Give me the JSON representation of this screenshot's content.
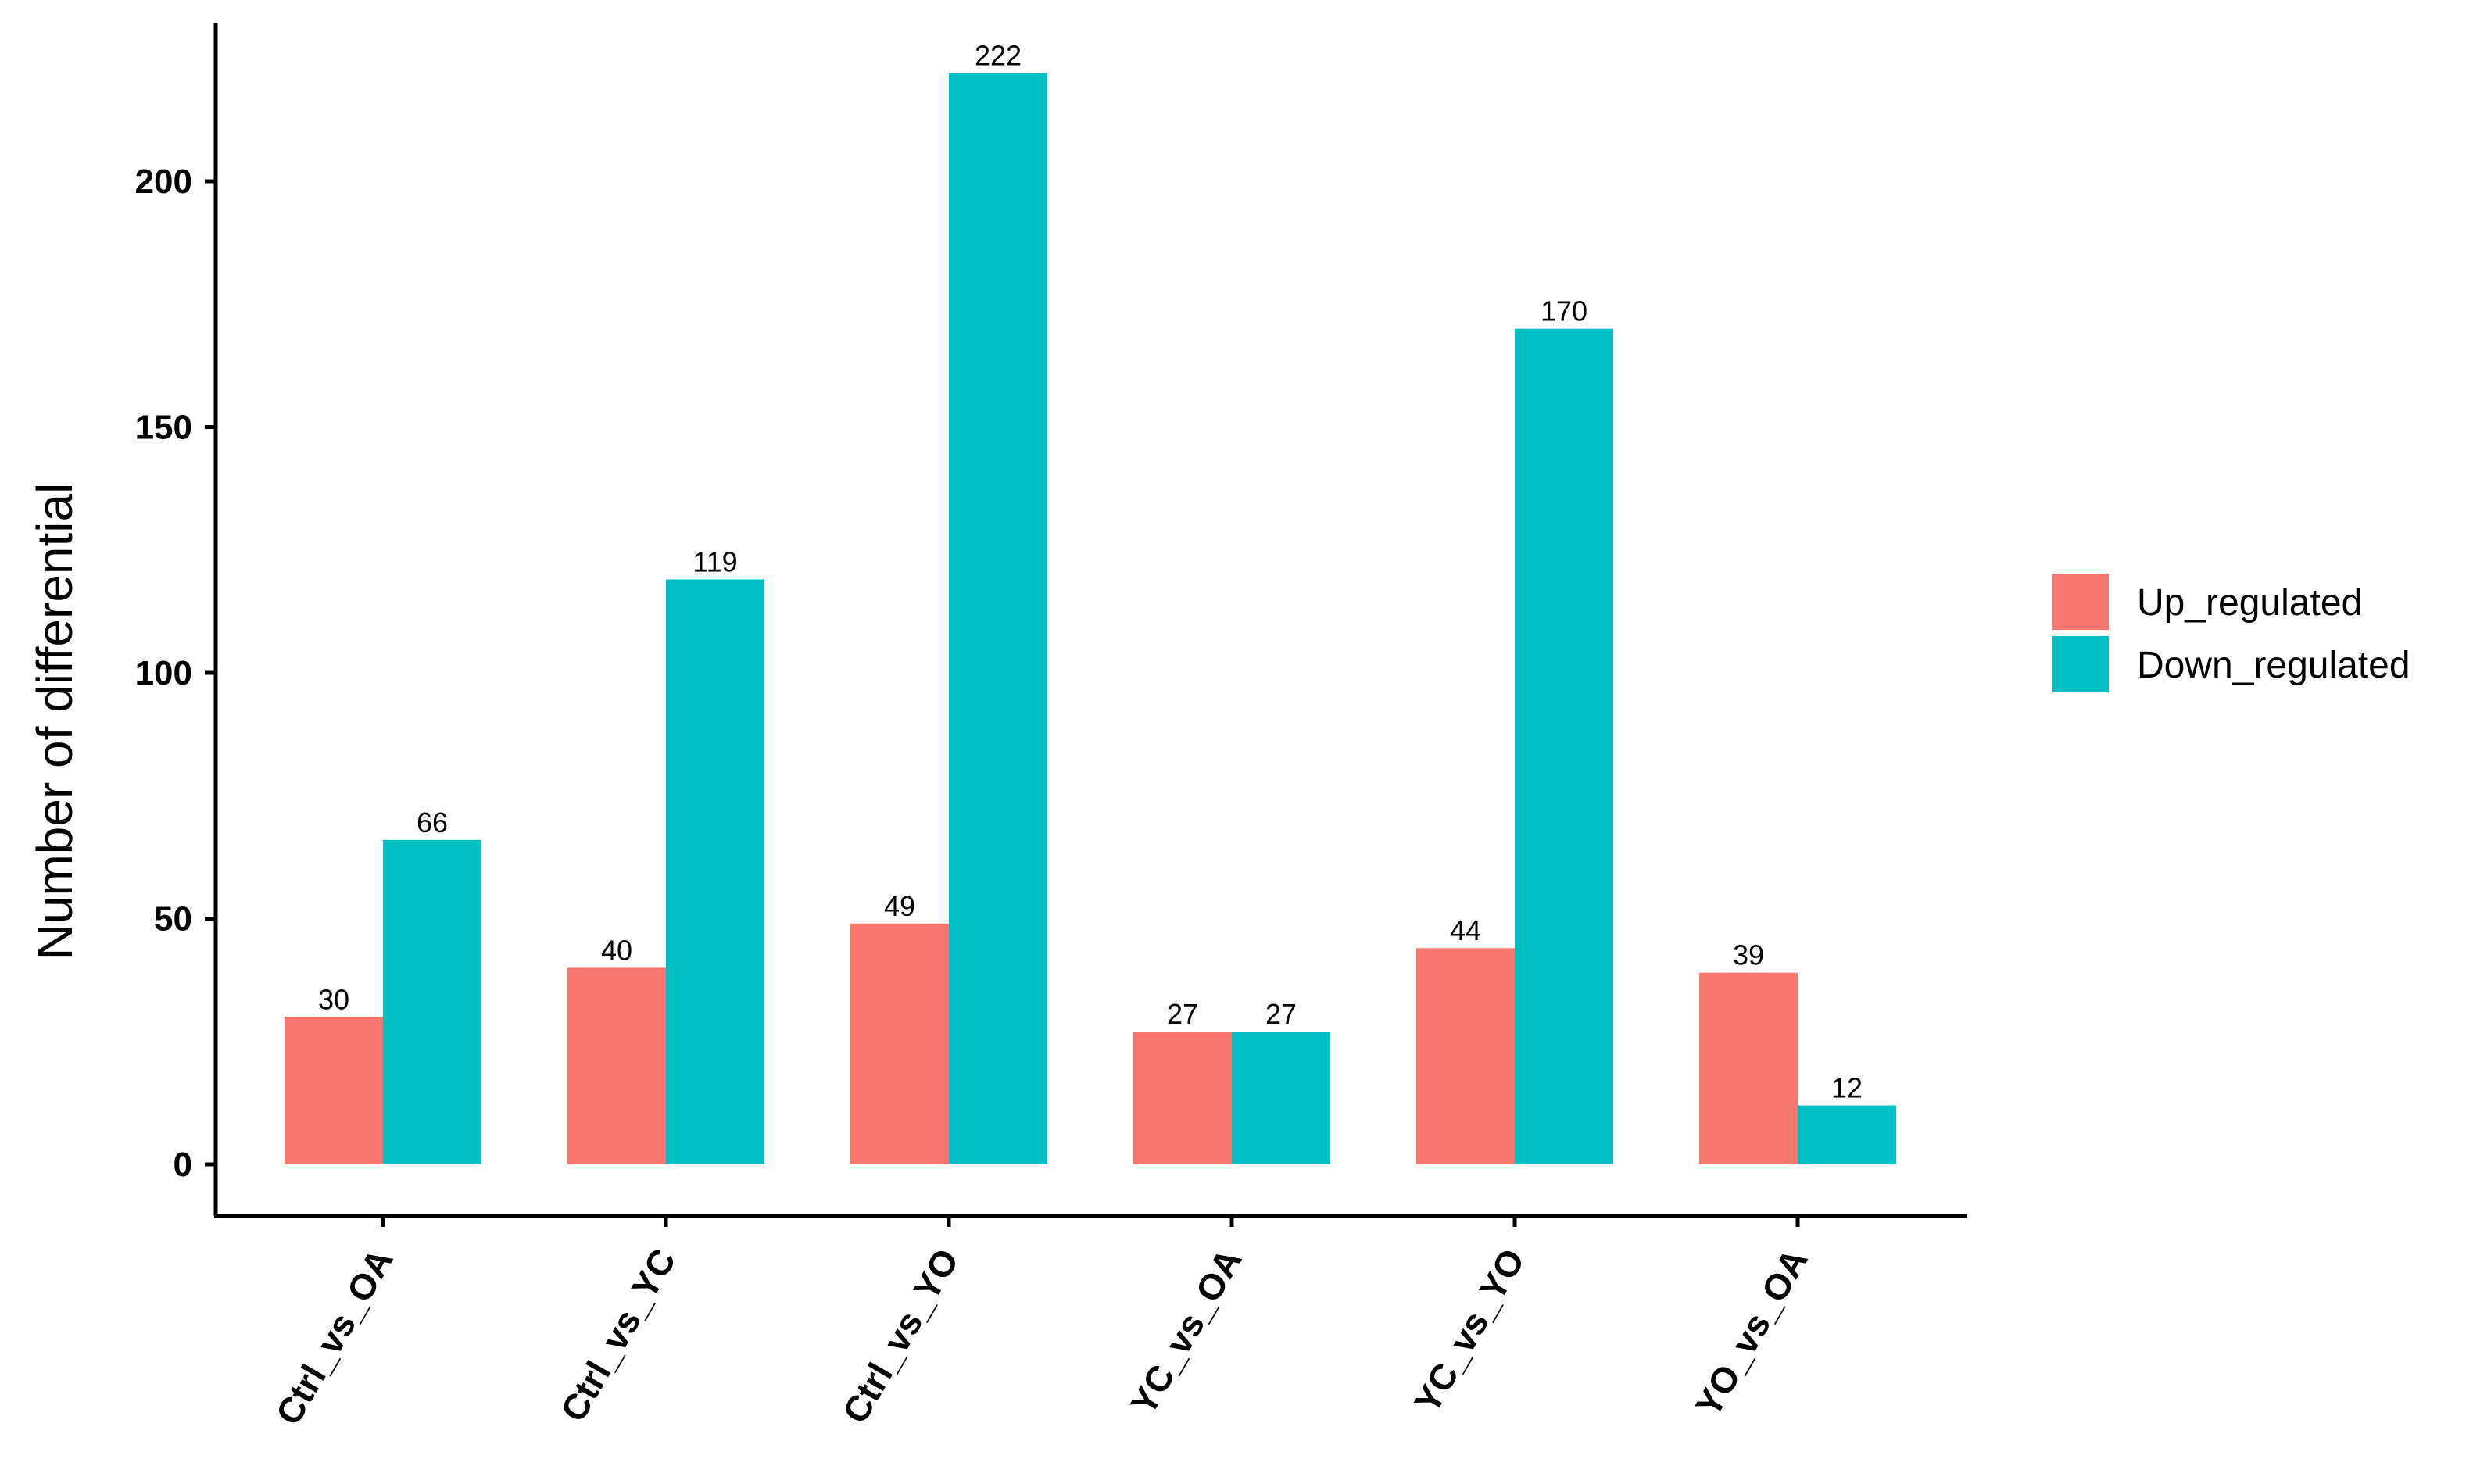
{
  "chart_data": {
    "type": "bar",
    "title": "",
    "xlabel": "",
    "ylabel": "Number of differential",
    "ylim": [
      0,
      235
    ],
    "yticks": [
      0,
      50,
      100,
      150,
      200
    ],
    "grid": false,
    "legend_position": "right",
    "categories": [
      "Ctrl_vs_OA",
      "Ctrl_vs_YC",
      "Ctrl_vs_YO",
      "YC_vs_OA",
      "YC_vs_YO",
      "YO_vs_OA"
    ],
    "series": [
      {
        "name": "Up_regulated",
        "color": "#F8766D",
        "values": [
          30,
          40,
          49,
          27,
          44,
          39
        ]
      },
      {
        "name": "Down_regulated",
        "color": "#00BFC4",
        "values": [
          66,
          119,
          222,
          27,
          170,
          12
        ]
      }
    ]
  }
}
